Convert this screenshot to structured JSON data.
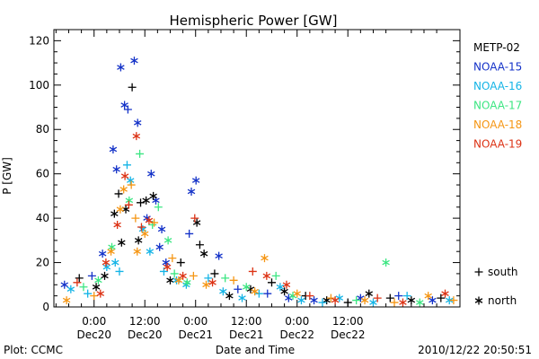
{
  "chart_data": {
    "type": "scatter",
    "title": "Hemispheric Power [GW]",
    "ylabel": "P [GW]",
    "xlabel": "Date and Time",
    "ylim": [
      0,
      125
    ],
    "xlim_hours": [
      -9.5,
      86.5
    ],
    "y_ticks": [
      0,
      20,
      40,
      60,
      80,
      100,
      120
    ],
    "x_ticks": [
      {
        "h": 0,
        "time": "0:00",
        "date": "Dec20"
      },
      {
        "h": 12,
        "time": "12:00",
        "date": "Dec20"
      },
      {
        "h": 24,
        "time": "0:00",
        "date": "Dec21"
      },
      {
        "h": 36,
        "time": "12:00",
        "date": "Dec21"
      },
      {
        "h": 48,
        "time": "0:00",
        "date": "Dec22"
      },
      {
        "h": 60,
        "time": "12:00",
        "date": "Dec22"
      }
    ],
    "legend_placement": "right",
    "series": [
      {
        "name": "METP-02",
        "color": "#000000"
      },
      {
        "name": "NOAA-15",
        "color": "#1432c8"
      },
      {
        "name": "NOAA-16",
        "color": "#14b4e6"
      },
      {
        "name": "NOAA-17",
        "color": "#3ce682"
      },
      {
        "name": "NOAA-18",
        "color": "#f59614"
      },
      {
        "name": "NOAA-19",
        "color": "#dc3214"
      }
    ],
    "marker_legend": [
      {
        "marker": "+",
        "label": "south"
      },
      {
        "marker": "*",
        "label": "north"
      }
    ],
    "points": [
      {
        "s": 1,
        "m": "*",
        "x": 4.5,
        "y": 71
      },
      {
        "s": 1,
        "m": "*",
        "x": 6.3,
        "y": 108
      },
      {
        "s": 1,
        "m": "*",
        "x": 7.2,
        "y": 91
      },
      {
        "s": 1,
        "m": "+",
        "x": 8.0,
        "y": 89
      },
      {
        "s": 1,
        "m": "*",
        "x": 9.5,
        "y": 111
      },
      {
        "s": 1,
        "m": "*",
        "x": 10.3,
        "y": 83
      },
      {
        "s": 1,
        "m": "*",
        "x": 5.3,
        "y": 62
      },
      {
        "s": 1,
        "m": "*",
        "x": 13.5,
        "y": 60
      },
      {
        "s": 1,
        "m": "*",
        "x": 14.6,
        "y": 48
      },
      {
        "s": 1,
        "m": "*",
        "x": 15.5,
        "y": 27
      },
      {
        "s": 1,
        "m": "*",
        "x": 16.0,
        "y": 35
      },
      {
        "s": 1,
        "m": "*",
        "x": 12.5,
        "y": 40
      },
      {
        "s": 1,
        "m": "*",
        "x": 23.0,
        "y": 52
      },
      {
        "s": 1,
        "m": "*",
        "x": 24.1,
        "y": 57
      },
      {
        "s": 1,
        "m": "+",
        "x": 22.5,
        "y": 33
      },
      {
        "s": 1,
        "m": "*",
        "x": 29.5,
        "y": 23
      },
      {
        "s": 1,
        "m": "*",
        "x": 17.0,
        "y": 20
      },
      {
        "s": 1,
        "m": "*",
        "x": 2.0,
        "y": 24
      },
      {
        "s": 1,
        "m": "+",
        "x": -0.5,
        "y": 14
      },
      {
        "s": 1,
        "m": "*",
        "x": -7.0,
        "y": 10
      },
      {
        "s": 1,
        "m": "+",
        "x": 41,
        "y": 6
      },
      {
        "s": 1,
        "m": "*",
        "x": 52,
        "y": 3
      },
      {
        "s": 1,
        "m": "*",
        "x": 63,
        "y": 4
      },
      {
        "s": 1,
        "m": "+",
        "x": 72,
        "y": 5
      },
      {
        "s": 1,
        "m": "*",
        "x": 80,
        "y": 3
      },
      {
        "s": 1,
        "m": "+",
        "x": 34,
        "y": 8
      },
      {
        "s": 1,
        "m": "*",
        "x": 46,
        "y": 4
      },
      {
        "s": 0,
        "m": "+",
        "x": 9.0,
        "y": 99
      },
      {
        "s": 0,
        "m": "*",
        "x": 4.8,
        "y": 42
      },
      {
        "s": 0,
        "m": "*",
        "x": 7.5,
        "y": 44
      },
      {
        "s": 0,
        "m": "+",
        "x": 11.0,
        "y": 47
      },
      {
        "s": 0,
        "m": "*",
        "x": 12.3,
        "y": 48
      },
      {
        "s": 0,
        "m": "*",
        "x": 14.0,
        "y": 50
      },
      {
        "s": 0,
        "m": "+",
        "x": 5.8,
        "y": 51
      },
      {
        "s": 0,
        "m": "*",
        "x": 6.5,
        "y": 29
      },
      {
        "s": 0,
        "m": "*",
        "x": 10.5,
        "y": 30
      },
      {
        "s": 0,
        "m": "+",
        "x": 20.5,
        "y": 20
      },
      {
        "s": 0,
        "m": "*",
        "x": 24.3,
        "y": 38
      },
      {
        "s": 0,
        "m": "+",
        "x": 25.0,
        "y": 28
      },
      {
        "s": 0,
        "m": "*",
        "x": 26.0,
        "y": 24
      },
      {
        "s": 0,
        "m": "*",
        "x": 18.0,
        "y": 12
      },
      {
        "s": 0,
        "m": "+",
        "x": 28.5,
        "y": 15
      },
      {
        "s": 0,
        "m": "*",
        "x": 2.5,
        "y": 14
      },
      {
        "s": 0,
        "m": "+",
        "x": -3.5,
        "y": 13
      },
      {
        "s": 0,
        "m": "*",
        "x": 0.5,
        "y": 9
      },
      {
        "s": 0,
        "m": "*",
        "x": 37,
        "y": 8
      },
      {
        "s": 0,
        "m": "+",
        "x": 42,
        "y": 11
      },
      {
        "s": 0,
        "m": "*",
        "x": 45,
        "y": 7
      },
      {
        "s": 0,
        "m": "+",
        "x": 50,
        "y": 5
      },
      {
        "s": 0,
        "m": "*",
        "x": 55,
        "y": 3
      },
      {
        "s": 0,
        "m": "+",
        "x": 60,
        "y": 2
      },
      {
        "s": 0,
        "m": "*",
        "x": 65,
        "y": 6
      },
      {
        "s": 0,
        "m": "+",
        "x": 70,
        "y": 4
      },
      {
        "s": 0,
        "m": "*",
        "x": 75,
        "y": 3
      },
      {
        "s": 0,
        "m": "+",
        "x": 82,
        "y": 4
      },
      {
        "s": 0,
        "m": "*",
        "x": 32,
        "y": 5
      },
      {
        "s": 2,
        "m": "+",
        "x": 7.8,
        "y": 64
      },
      {
        "s": 2,
        "m": "*",
        "x": 8.6,
        "y": 57
      },
      {
        "s": 2,
        "m": "*",
        "x": 3.0,
        "y": 18
      },
      {
        "s": 2,
        "m": "*",
        "x": 5.0,
        "y": 20
      },
      {
        "s": 2,
        "m": "+",
        "x": 6.0,
        "y": 16
      },
      {
        "s": 2,
        "m": "*",
        "x": 11.5,
        "y": 35
      },
      {
        "s": 2,
        "m": "*",
        "x": 13.2,
        "y": 25
      },
      {
        "s": 2,
        "m": "+",
        "x": 16.5,
        "y": 16
      },
      {
        "s": 2,
        "m": "*",
        "x": 19.5,
        "y": 12
      },
      {
        "s": 2,
        "m": "*",
        "x": 21.8,
        "y": 10
      },
      {
        "s": 2,
        "m": "+",
        "x": 27.0,
        "y": 13
      },
      {
        "s": 2,
        "m": "*",
        "x": 30.5,
        "y": 7
      },
      {
        "s": 2,
        "m": "*",
        "x": -5.5,
        "y": 8
      },
      {
        "s": 2,
        "m": "+",
        "x": -1.5,
        "y": 6
      },
      {
        "s": 2,
        "m": "*",
        "x": 35,
        "y": 4
      },
      {
        "s": 2,
        "m": "+",
        "x": 39,
        "y": 6
      },
      {
        "s": 2,
        "m": "*",
        "x": 44,
        "y": 9
      },
      {
        "s": 2,
        "m": "*",
        "x": 49,
        "y": 3
      },
      {
        "s": 2,
        "m": "+",
        "x": 54,
        "y": 2
      },
      {
        "s": 2,
        "m": "*",
        "x": 58,
        "y": 4
      },
      {
        "s": 2,
        "m": "*",
        "x": 66,
        "y": 2
      },
      {
        "s": 2,
        "m": "+",
        "x": 74,
        "y": 5
      },
      {
        "s": 2,
        "m": "*",
        "x": 84,
        "y": 3
      },
      {
        "s": 3,
        "m": "+",
        "x": 10.8,
        "y": 69
      },
      {
        "s": 3,
        "m": "*",
        "x": 8.3,
        "y": 48
      },
      {
        "s": 3,
        "m": "+",
        "x": 15.2,
        "y": 45
      },
      {
        "s": 3,
        "m": "*",
        "x": 4.2,
        "y": 27
      },
      {
        "s": 3,
        "m": "+",
        "x": 13.8,
        "y": 37
      },
      {
        "s": 3,
        "m": "*",
        "x": 17.5,
        "y": 30
      },
      {
        "s": 3,
        "m": "+",
        "x": 19.0,
        "y": 15
      },
      {
        "s": 3,
        "m": "*",
        "x": 22.0,
        "y": 11
      },
      {
        "s": 3,
        "m": "+",
        "x": 31.0,
        "y": 13
      },
      {
        "s": 3,
        "m": "*",
        "x": 1.0,
        "y": 12
      },
      {
        "s": 3,
        "m": "+",
        "x": -2.5,
        "y": 9
      },
      {
        "s": 3,
        "m": "*",
        "x": 36,
        "y": 9
      },
      {
        "s": 3,
        "m": "+",
        "x": 43,
        "y": 14
      },
      {
        "s": 3,
        "m": "*",
        "x": 47,
        "y": 5
      },
      {
        "s": 3,
        "m": "*",
        "x": 69,
        "y": 20
      },
      {
        "s": 3,
        "m": "+",
        "x": 62,
        "y": 3
      },
      {
        "s": 3,
        "m": "*",
        "x": 77,
        "y": 2
      },
      {
        "s": 4,
        "m": "*",
        "x": 7.0,
        "y": 53
      },
      {
        "s": 4,
        "m": "+",
        "x": 8.8,
        "y": 55
      },
      {
        "s": 4,
        "m": "*",
        "x": 6.2,
        "y": 44
      },
      {
        "s": 4,
        "m": "+",
        "x": 9.8,
        "y": 40
      },
      {
        "s": 4,
        "m": "*",
        "x": 12.0,
        "y": 33
      },
      {
        "s": 4,
        "m": "+",
        "x": 14.2,
        "y": 38
      },
      {
        "s": 4,
        "m": "*",
        "x": 4.0,
        "y": 25
      },
      {
        "s": 4,
        "m": "*",
        "x": 10.2,
        "y": 25
      },
      {
        "s": 4,
        "m": "+",
        "x": 18.5,
        "y": 22
      },
      {
        "s": 4,
        "m": "*",
        "x": 20.0,
        "y": 12
      },
      {
        "s": 4,
        "m": "+",
        "x": 23.5,
        "y": 14
      },
      {
        "s": 4,
        "m": "*",
        "x": 26.5,
        "y": 10
      },
      {
        "s": 4,
        "m": "*",
        "x": -6.5,
        "y": 3
      },
      {
        "s": 4,
        "m": "+",
        "x": 0.0,
        "y": 5
      },
      {
        "s": 4,
        "m": "*",
        "x": 38,
        "y": 7
      },
      {
        "s": 4,
        "m": "*",
        "x": 40.3,
        "y": 22
      },
      {
        "s": 4,
        "m": "+",
        "x": 33,
        "y": 12
      },
      {
        "s": 4,
        "m": "*",
        "x": 48,
        "y": 6
      },
      {
        "s": 4,
        "m": "+",
        "x": 56,
        "y": 4
      },
      {
        "s": 4,
        "m": "*",
        "x": 64,
        "y": 3
      },
      {
        "s": 4,
        "m": "+",
        "x": 71,
        "y": 2
      },
      {
        "s": 4,
        "m": "*",
        "x": 79,
        "y": 5
      },
      {
        "s": 4,
        "m": "+",
        "x": 85,
        "y": 3
      },
      {
        "s": 5,
        "m": "*",
        "x": 10.0,
        "y": 77
      },
      {
        "s": 5,
        "m": "*",
        "x": 7.3,
        "y": 59
      },
      {
        "s": 5,
        "m": "+",
        "x": 8.2,
        "y": 46
      },
      {
        "s": 5,
        "m": "*",
        "x": 5.5,
        "y": 37
      },
      {
        "s": 5,
        "m": "*",
        "x": 13.0,
        "y": 39
      },
      {
        "s": 5,
        "m": "+",
        "x": 11.2,
        "y": 36
      },
      {
        "s": 5,
        "m": "*",
        "x": 17.3,
        "y": 18
      },
      {
        "s": 5,
        "m": "*",
        "x": 21.0,
        "y": 14
      },
      {
        "s": 5,
        "m": "+",
        "x": 23.8,
        "y": 40
      },
      {
        "s": 5,
        "m": "*",
        "x": 28.0,
        "y": 11
      },
      {
        "s": 5,
        "m": "*",
        "x": 2.8,
        "y": 20
      },
      {
        "s": 5,
        "m": "+",
        "x": -4.0,
        "y": 11
      },
      {
        "s": 5,
        "m": "*",
        "x": 1.5,
        "y": 6
      },
      {
        "s": 5,
        "m": "+",
        "x": 37.5,
        "y": 16
      },
      {
        "s": 5,
        "m": "*",
        "x": 40.8,
        "y": 14
      },
      {
        "s": 5,
        "m": "*",
        "x": 45.5,
        "y": 10
      },
      {
        "s": 5,
        "m": "+",
        "x": 51,
        "y": 5
      },
      {
        "s": 5,
        "m": "*",
        "x": 57,
        "y": 3
      },
      {
        "s": 5,
        "m": "+",
        "x": 67,
        "y": 4
      },
      {
        "s": 5,
        "m": "*",
        "x": 73,
        "y": 2
      },
      {
        "s": 5,
        "m": "*",
        "x": 83,
        "y": 6
      }
    ]
  },
  "footer": {
    "plot_credit": "Plot: CCMC",
    "timestamp": "2010/12/22 20:50:51"
  }
}
